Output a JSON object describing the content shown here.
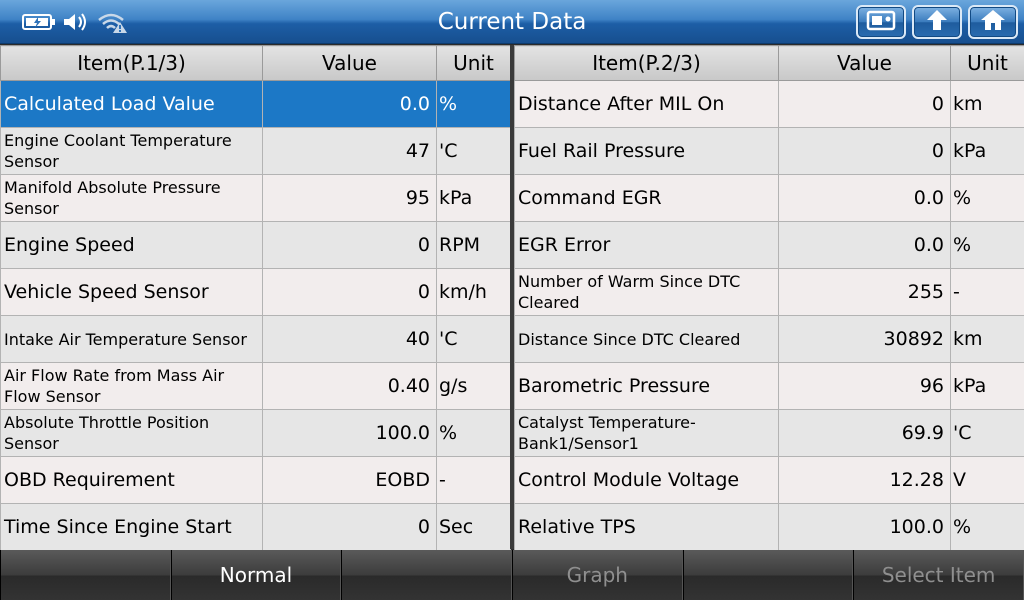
{
  "header": {
    "title": "Current Data"
  },
  "left_table": {
    "headers": {
      "item": "Item(P.1/3)",
      "value": "Value",
      "unit": "Unit"
    },
    "rows": [
      {
        "name": "Calculated Load Value",
        "value": "0.0",
        "unit": "%"
      },
      {
        "name": "Engine Coolant Temperature Sensor",
        "value": "47",
        "unit": "'C"
      },
      {
        "name": "Manifold Absolute Pressure Sensor",
        "value": "95",
        "unit": "kPa"
      },
      {
        "name": "Engine Speed",
        "value": "0",
        "unit": "RPM"
      },
      {
        "name": "Vehicle Speed Sensor",
        "value": "0",
        "unit": "km/h"
      },
      {
        "name": "Intake Air Temperature Sensor",
        "value": "40",
        "unit": "'C"
      },
      {
        "name": "Air Flow Rate from Mass Air Flow Sensor",
        "value": "0.40",
        "unit": "g/s"
      },
      {
        "name": "Absolute Throttle Position Sensor",
        "value": "100.0",
        "unit": "%"
      },
      {
        "name": "OBD Requirement",
        "value": "EOBD",
        "unit": "-"
      },
      {
        "name": "Time Since Engine Start",
        "value": "0",
        "unit": "Sec"
      }
    ]
  },
  "right_table": {
    "headers": {
      "item": "Item(P.2/3)",
      "value": "Value",
      "unit": "Unit"
    },
    "rows": [
      {
        "name": "Distance After MIL On",
        "value": "0",
        "unit": "km"
      },
      {
        "name": "Fuel Rail Pressure",
        "value": "0",
        "unit": "kPa"
      },
      {
        "name": "Command EGR",
        "value": "0.0",
        "unit": "%"
      },
      {
        "name": "EGR Error",
        "value": "0.0",
        "unit": "%"
      },
      {
        "name": "Number of Warm Since DTC Cleared",
        "value": "255",
        "unit": "-"
      },
      {
        "name": "Distance Since DTC Cleared",
        "value": "30892",
        "unit": "km"
      },
      {
        "name": "Barometric Pressure",
        "value": "96",
        "unit": "kPa"
      },
      {
        "name": "Catalyst Temperature-Bank1/Sensor1",
        "value": "69.9",
        "unit": "'C"
      },
      {
        "name": "Control Module Voltage",
        "value": "12.28",
        "unit": "V"
      },
      {
        "name": "Relative TPS",
        "value": "100.0",
        "unit": "%"
      }
    ]
  },
  "bottom_bar": {
    "buttons": [
      {
        "label": ""
      },
      {
        "label": "Normal"
      },
      {
        "label": ""
      },
      {
        "label": "Graph"
      },
      {
        "label": ""
      },
      {
        "label": "Select Item"
      }
    ]
  },
  "icons": {
    "status": [
      "battery-icon",
      "speaker-icon",
      "wifi-warning-icon"
    ],
    "toolbar": [
      "screenshot-icon",
      "back-icon",
      "home-icon"
    ]
  },
  "colors": {
    "selected_row": "#1c78c6",
    "titlebar": "#2f72b8"
  }
}
